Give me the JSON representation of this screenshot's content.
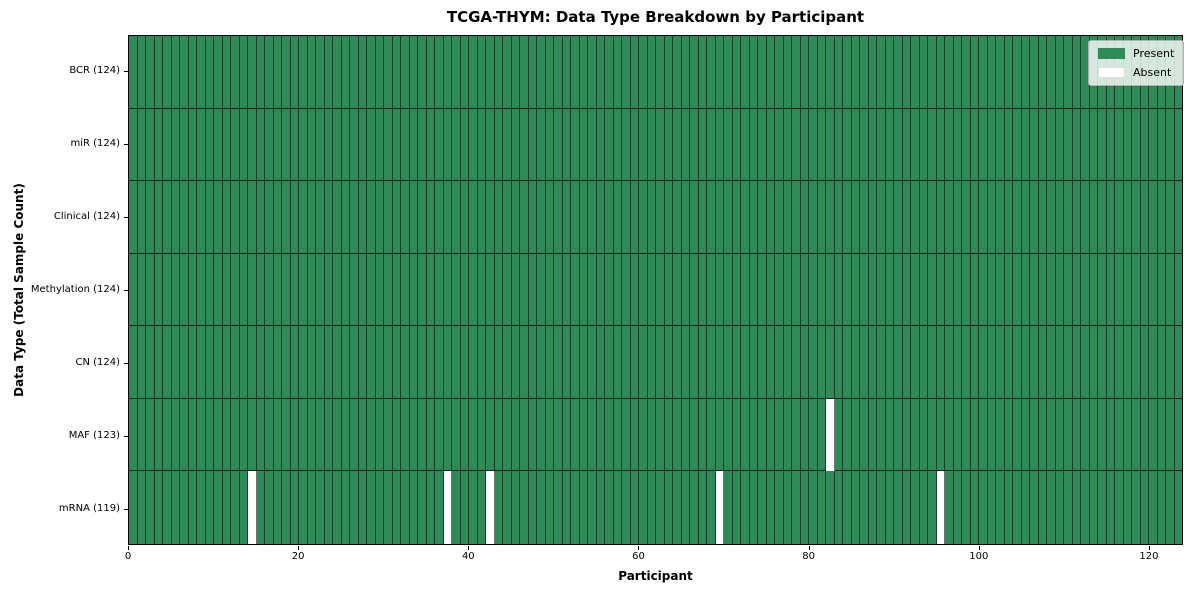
{
  "chart_data": {
    "type": "heatmap",
    "title": "TCGA-THYM: Data Type Breakdown by Participant",
    "xlabel": "Participant",
    "ylabel": "Data Type (Total Sample Count)",
    "xlim": [
      0,
      124
    ],
    "n_participants": 124,
    "x_ticks": [
      0,
      20,
      40,
      60,
      80,
      100,
      120
    ],
    "grid": "per-cell black gridlines",
    "legend_position": "upper right",
    "legend_items": [
      {
        "label": "Present",
        "color": "#2e8b57"
      },
      {
        "label": "Absent",
        "color": "#ffffff"
      }
    ],
    "colors": {
      "present": "#2e8b57",
      "absent": "#ffffff",
      "gridline": "rgba(0,0,0,0.55)"
    },
    "rows": [
      {
        "label": "BCR (124)",
        "data_type": "BCR",
        "total_sample_count": 124,
        "absent_participants": []
      },
      {
        "label": "miR (124)",
        "data_type": "miR",
        "total_sample_count": 124,
        "absent_participants": []
      },
      {
        "label": "Clinical (124)",
        "data_type": "Clinical",
        "total_sample_count": 124,
        "absent_participants": []
      },
      {
        "label": "Methylation (124)",
        "data_type": "Methylation",
        "total_sample_count": 124,
        "absent_participants": []
      },
      {
        "label": "CN (124)",
        "data_type": "CN",
        "total_sample_count": 124,
        "absent_participants": []
      },
      {
        "label": "MAF (123)",
        "data_type": "MAF",
        "total_sample_count": 123,
        "absent_participants": [
          82
        ]
      },
      {
        "label": "mRNA (119)",
        "data_type": "mRNA",
        "total_sample_count": 119,
        "absent_participants": [
          14,
          37,
          42,
          69,
          95
        ]
      }
    ]
  }
}
